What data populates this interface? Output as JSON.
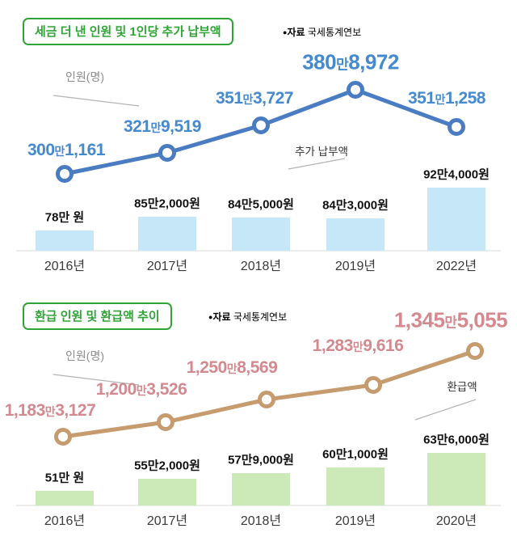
{
  "page": {
    "background": "#ffffff"
  },
  "chart_data": [
    {
      "type": "combo",
      "subtype": "line+bar",
      "title": "세금 더 낸 인원 및 1인당 추가 납부액",
      "source_marker": "●",
      "source_label": "자료",
      "source_name": "국세통계연보",
      "categories": [
        "2016년",
        "2017년",
        "2018년",
        "2019년",
        "2022년"
      ],
      "line_series": {
        "name": "인원(명)",
        "unit": "명",
        "labels": [
          "300만1,161",
          "321만9,519",
          "351만3,727",
          "380만8,972",
          "351만1,258"
        ],
        "values": [
          3001161,
          3219519,
          3513727,
          3808972,
          3511258
        ]
      },
      "bar_series": {
        "name": "추가 납부액",
        "unit": "원",
        "labels": [
          "78만 원",
          "85만2,000원",
          "84만5,000원",
          "84만3,000원",
          "92만4,000원"
        ],
        "values": [
          780000,
          852000,
          845000,
          843000,
          924000
        ]
      },
      "legend_position": "inline-annotations",
      "grid": false,
      "colors": {
        "title": "#31a437",
        "line": "#4a7cc2",
        "value_text": "#4589cf",
        "bar": "#c6e7f8"
      }
    },
    {
      "type": "combo",
      "subtype": "line+bar",
      "title": "환급 인원 및 환급액 추이",
      "source_marker": "●",
      "source_label": "자료",
      "source_name": "국세통계연보",
      "categories": [
        "2016년",
        "2017년",
        "2018년",
        "2019년",
        "2020년"
      ],
      "line_series": {
        "name": "인원(명)",
        "unit": "명",
        "labels": [
          "1,183만3,127",
          "1,200만3,526",
          "1,250만8,569",
          "1,283만9,616",
          "1,345만5,055"
        ],
        "values": [
          11833127,
          12003526,
          12508569,
          12839616,
          13455055
        ]
      },
      "bar_series": {
        "name": "환급액",
        "unit": "원",
        "labels": [
          "51만 원",
          "55만2,000원",
          "57만9,000원",
          "60만1,000원",
          "63만6,000원"
        ],
        "values": [
          510000,
          552000,
          579000,
          601000,
          636000
        ]
      },
      "legend_position": "inline-annotations",
      "grid": false,
      "colors": {
        "title": "#31a437",
        "line": "#c69b6d",
        "value_text": "#d3898e",
        "bar": "#cce9b8"
      }
    }
  ]
}
